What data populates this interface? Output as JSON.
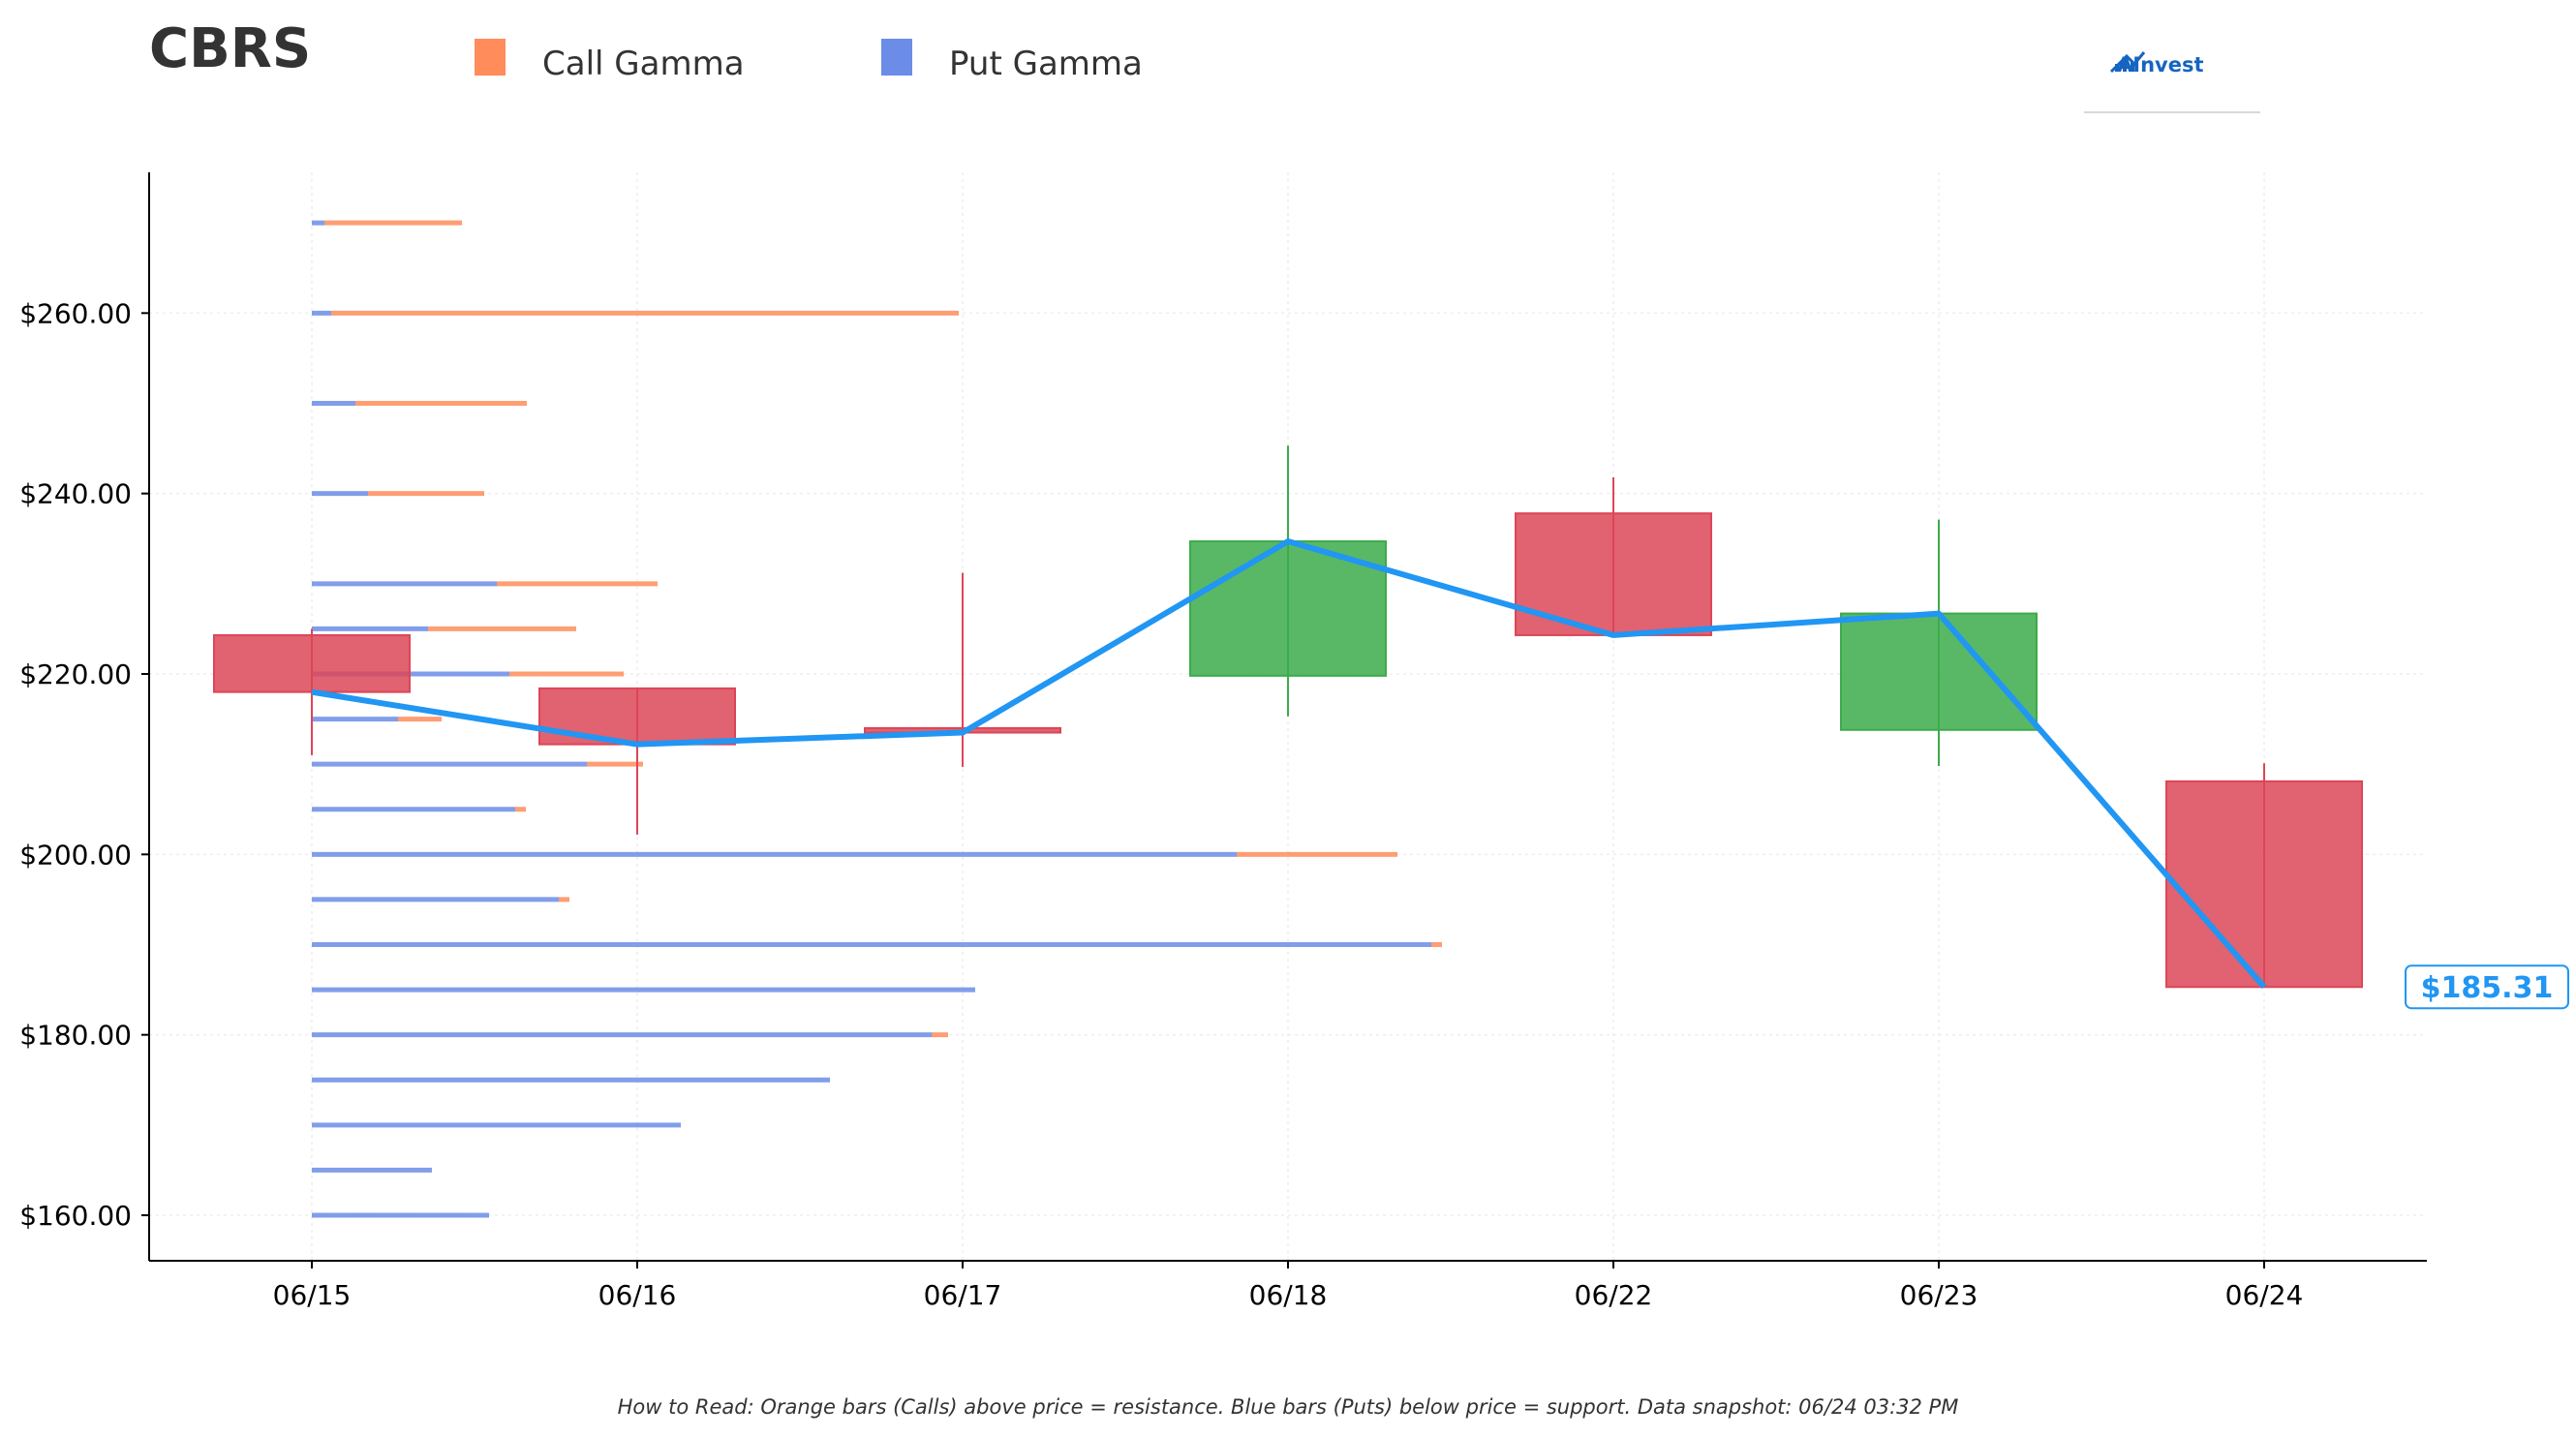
{
  "header": {
    "ticker": "CBRS",
    "logo_text": "AInvest"
  },
  "legend": {
    "items": [
      {
        "label": "Call Gamma",
        "color": "#FF8C5A"
      },
      {
        "label": "Put Gamma",
        "color": "#6B8DE8"
      }
    ]
  },
  "footnote": "How to Read: Orange bars (Calls) above price = resistance. Blue bars (Puts) below price = support. Data snapshot: 06/24 03:32 PM",
  "chart_data": {
    "type": "candlestick",
    "title": "CBRS",
    "xlabel": "",
    "ylabel": "",
    "ylim": [
      155,
      275
    ],
    "y_ticks": [
      {
        "value": 160,
        "label": "$160.00"
      },
      {
        "value": 180,
        "label": "$180.00"
      },
      {
        "value": 200,
        "label": "$200.00"
      },
      {
        "value": 220,
        "label": "$220.00"
      },
      {
        "value": 240,
        "label": "$240.00"
      },
      {
        "value": 260,
        "label": "$260.00"
      }
    ],
    "categories": [
      "06/15",
      "06/16",
      "06/17",
      "06/18",
      "06/22",
      "06/23",
      "06/24"
    ],
    "colors": {
      "up": "#3CAB4B",
      "down": "#DC4657",
      "close_line": "#2196F3"
    },
    "candles": [
      {
        "date": "06/15",
        "open": 224.3,
        "high": 225.0,
        "low": 211.0,
        "close": 218.0
      },
      {
        "date": "06/16",
        "open": 218.4,
        "high": 218.4,
        "low": 202.2,
        "close": 212.2
      },
      {
        "date": "06/17",
        "open": 214.0,
        "high": 231.2,
        "low": 209.7,
        "close": 213.5
      },
      {
        "date": "06/18",
        "open": 219.8,
        "high": 245.3,
        "low": 215.3,
        "close": 234.7
      },
      {
        "date": "06/22",
        "open": 237.8,
        "high": 241.8,
        "low": 224.3,
        "close": 224.3
      },
      {
        "date": "06/23",
        "open": 213.8,
        "high": 237.1,
        "low": 209.8,
        "close": 226.7
      },
      {
        "date": "06/24",
        "open": 208.1,
        "high": 210.1,
        "low": 185.3,
        "close": 185.3
      }
    ],
    "close_series": [
      218.0,
      212.2,
      213.5,
      234.7,
      224.3,
      226.7,
      185.31
    ],
    "last_price": 185.31,
    "last_price_label": "$185.31",
    "gamma_scale_max": 1.0,
    "gamma_levels": [
      {
        "strike": 270,
        "put": 0.013,
        "call": 0.142
      },
      {
        "strike": 260,
        "put": 0.02,
        "call": 0.648
      },
      {
        "strike": 250,
        "put": 0.045,
        "call": 0.177
      },
      {
        "strike": 240,
        "put": 0.058,
        "call": 0.12
      },
      {
        "strike": 230,
        "put": 0.191,
        "call": 0.166
      },
      {
        "strike": 225,
        "put": 0.12,
        "call": 0.153
      },
      {
        "strike": 220,
        "put": 0.204,
        "call": 0.118
      },
      {
        "strike": 215,
        "put": 0.089,
        "call": 0.045
      },
      {
        "strike": 210,
        "put": 0.284,
        "call": 0.058
      },
      {
        "strike": 205,
        "put": 0.21,
        "call": 0.011
      },
      {
        "strike": 200,
        "put": 0.955,
        "call": 0.166
      },
      {
        "strike": 195,
        "put": 0.255,
        "call": 0.011
      },
      {
        "strike": 190,
        "put": 1.156,
        "call": 0.011
      },
      {
        "strike": 185,
        "put": 0.685,
        "call": 0.0
      },
      {
        "strike": 180,
        "put": 0.64,
        "call": 0.017
      },
      {
        "strike": 175,
        "put": 0.535,
        "call": 0.0
      },
      {
        "strike": 170,
        "put": 0.381,
        "call": 0.0
      },
      {
        "strike": 165,
        "put": 0.124,
        "call": 0.0
      },
      {
        "strike": 160,
        "put": 0.183,
        "call": 0.0
      }
    ],
    "grid": true,
    "legend_position": "top-left"
  }
}
